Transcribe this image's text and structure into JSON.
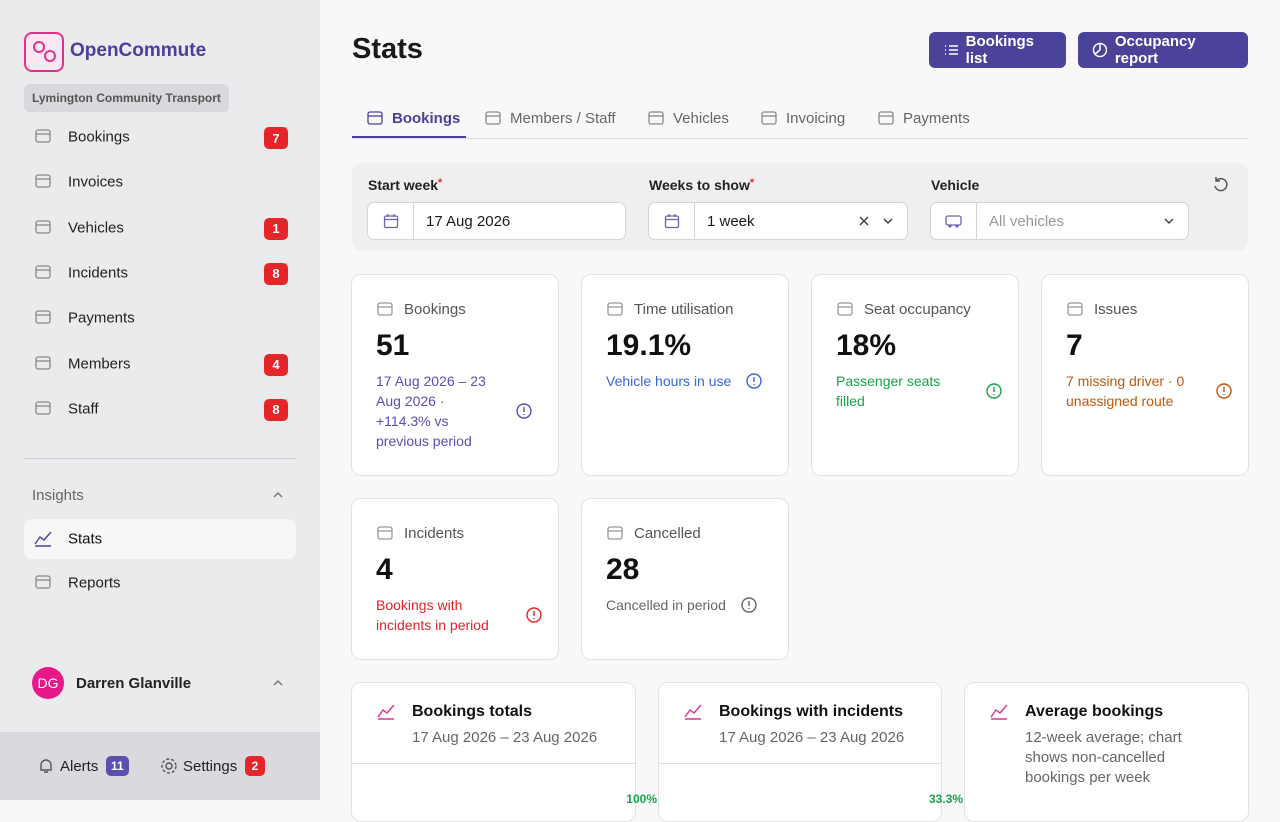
{
  "sidebar": {
    "brand": "OpenCommute",
    "organization": "Lymington Community Transport",
    "nav": [
      {
        "label": "Bookings",
        "badge": 7
      },
      {
        "label": "Invoices"
      },
      {
        "label": "Vehicles",
        "badge": 1
      },
      {
        "label": "Incidents",
        "badge": 8
      },
      {
        "label": "Payments"
      },
      {
        "label": "Members",
        "badge": 4
      },
      {
        "label": "Staff",
        "badge": 8
      }
    ],
    "section": "Insights",
    "insights": [
      {
        "label": "Stats"
      },
      {
        "label": "Reports"
      }
    ],
    "user": {
      "initials": "DG",
      "name": "Darren Glanville"
    },
    "footer": [
      {
        "label": "Alerts",
        "badge": 11
      },
      {
        "label": "Settings",
        "badge": 2
      }
    ]
  },
  "header": {
    "title": "Stats",
    "actions": [
      "Bookings list",
      "Occupancy report"
    ]
  },
  "tabs": [
    "Bookings",
    "Members / Staff",
    "Vehicles",
    "Invoicing",
    "Payments"
  ],
  "filters": {
    "start_week": {
      "label": "Start week",
      "required": "*",
      "value": "17 Aug 2026"
    },
    "weeks": {
      "label": "Weeks to show",
      "required": "*",
      "value": "1 week"
    },
    "vehicle": {
      "label": "Vehicle",
      "placeholder": "All vehicles"
    }
  },
  "stats": [
    {
      "label": "Bookings",
      "value": "51",
      "description": "17 Aug 2026 – 23 Aug 2026 · +114.3% vs previous period"
    },
    {
      "label": "Time utilisation",
      "value": "19.1%",
      "description": "Vehicle hours in use"
    },
    {
      "label": "Seat occupancy",
      "value": "18%",
      "description": "Passenger seats filled"
    },
    {
      "label": "Issues",
      "value": "7",
      "description": "7 missing driver · 0 unassigned route"
    },
    {
      "label": "Incidents",
      "value": "4",
      "description": "Bookings with incidents in period"
    },
    {
      "label": "Cancelled",
      "value": "28",
      "description": "Cancelled in period"
    }
  ],
  "panels": [
    {
      "title": "Bookings totals",
      "subtitle": "17 Aug 2026 – 23 Aug 2026",
      "change": "100%"
    },
    {
      "title": "Bookings with incidents",
      "subtitle": "17 Aug 2026 – 23 Aug 2026",
      "change": "33.3%"
    },
    {
      "title": "Average bookings",
      "subtitle": "12-week average; chart shows non-cancelled bookings per week"
    }
  ]
}
